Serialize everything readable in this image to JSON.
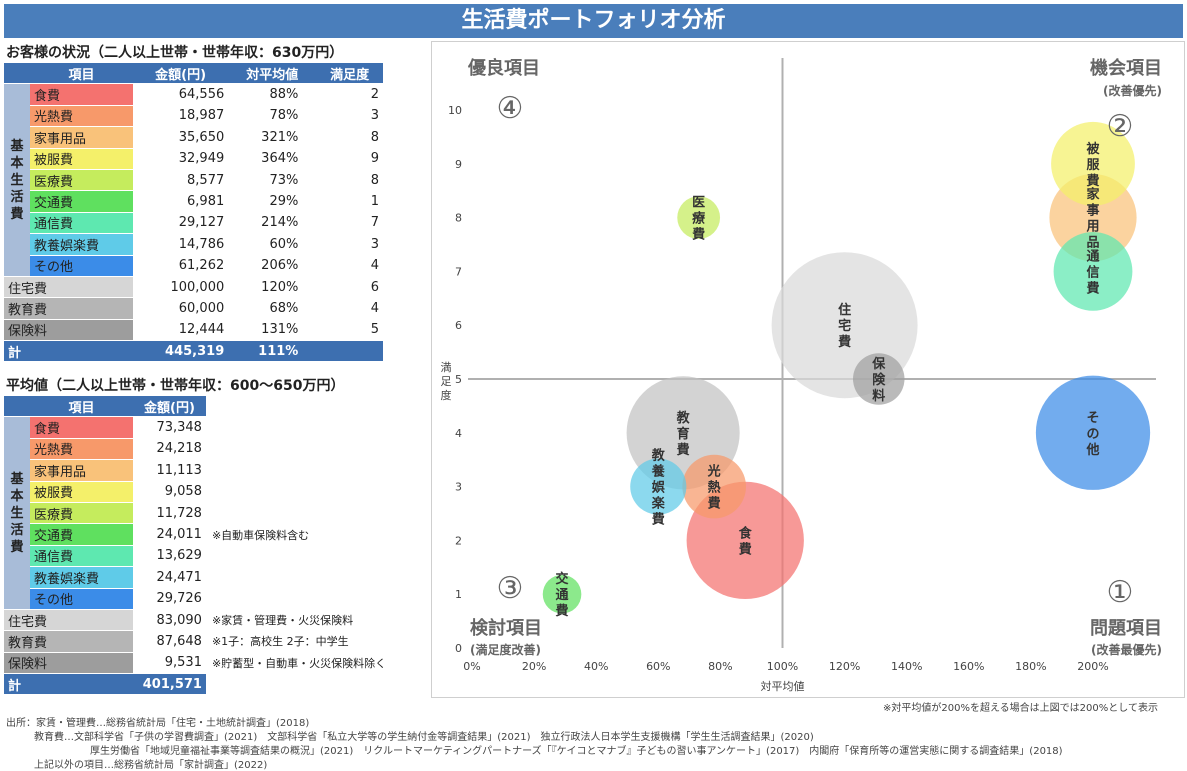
{
  "title": "生活費ポートフォリオ分析",
  "table1": {
    "heading": "お客様の状況（二人以上世帯・世帯年収：630万円）",
    "headers": [
      "",
      "項目",
      "金額(円)",
      "対平均値",
      "満足度"
    ],
    "side_label": "基本生活費",
    "basic_rows": [
      {
        "item": "食費",
        "amount": "64,556",
        "ratio": "88%",
        "sat": "2",
        "color": "#f4726f"
      },
      {
        "item": "光熱費",
        "amount": "18,987",
        "ratio": "78%",
        "sat": "3",
        "color": "#f7996a"
      },
      {
        "item": "家事用品",
        "amount": "35,650",
        "ratio": "321%",
        "sat": "8",
        "color": "#f9c27a"
      },
      {
        "item": "被服費",
        "amount": "32,949",
        "ratio": "364%",
        "sat": "9",
        "color": "#f4f06a"
      },
      {
        "item": "医療費",
        "amount": "8,577",
        "ratio": "73%",
        "sat": "8",
        "color": "#c5ec5d"
      },
      {
        "item": "交通費",
        "amount": "6,981",
        "ratio": "29%",
        "sat": "1",
        "color": "#5fe05f"
      },
      {
        "item": "通信費",
        "amount": "29,127",
        "ratio": "214%",
        "sat": "7",
        "color": "#5ee8b0"
      },
      {
        "item": "教養娯楽費",
        "amount": "14,786",
        "ratio": "60%",
        "sat": "3",
        "color": "#5fcbe8"
      },
      {
        "item": "その他",
        "amount": "61,262",
        "ratio": "206%",
        "sat": "4",
        "color": "#3b8ce8"
      }
    ],
    "other_rows": [
      {
        "item": "住宅費",
        "amount": "100,000",
        "ratio": "120%",
        "sat": "6",
        "cls": "gray1"
      },
      {
        "item": "教育費",
        "amount": "60,000",
        "ratio": "68%",
        "sat": "4",
        "cls": "gray2"
      },
      {
        "item": "保険料",
        "amount": "12,444",
        "ratio": "131%",
        "sat": "5",
        "cls": "gray3"
      }
    ],
    "total": {
      "label": "計",
      "amount": "445,319",
      "ratio": "111%"
    }
  },
  "table2": {
    "heading": "平均値（二人以上世帯・世帯年収：600～650万円）",
    "headers": [
      "",
      "項目",
      "金額(円)"
    ],
    "side_label": "基本生活費",
    "basic_rows": [
      {
        "item": "食費",
        "amount": "73,348",
        "note": "",
        "color": "#f4726f"
      },
      {
        "item": "光熱費",
        "amount": "24,218",
        "note": "",
        "color": "#f7996a"
      },
      {
        "item": "家事用品",
        "amount": "11,113",
        "note": "",
        "color": "#f9c27a"
      },
      {
        "item": "被服費",
        "amount": "9,058",
        "note": "",
        "color": "#f4f06a"
      },
      {
        "item": "医療費",
        "amount": "11,728",
        "note": "",
        "color": "#c5ec5d"
      },
      {
        "item": "交通費",
        "amount": "24,011",
        "note": "※自動車保険料含む",
        "color": "#5fe05f"
      },
      {
        "item": "通信費",
        "amount": "13,629",
        "note": "",
        "color": "#5ee8b0"
      },
      {
        "item": "教養娯楽費",
        "amount": "24,471",
        "note": "",
        "color": "#5fcbe8"
      },
      {
        "item": "その他",
        "amount": "29,726",
        "note": "",
        "color": "#3b8ce8"
      }
    ],
    "other_rows": [
      {
        "item": "住宅費",
        "amount": "83,090",
        "note": "※家賃・管理費・火災保険料",
        "cls": "gray1"
      },
      {
        "item": "教育費",
        "amount": "87,648",
        "note": "※1子：高校生 2子：中学生",
        "cls": "gray2"
      },
      {
        "item": "保険料",
        "amount": "9,531",
        "note": "※貯蓄型・自動車・火災保険料除く",
        "cls": "gray3"
      }
    ],
    "total": {
      "label": "計",
      "amount": "401,571"
    }
  },
  "chart_data": {
    "type": "scatter",
    "xlabel": "対平均値",
    "ylabel": "満足度",
    "xlim": [
      0,
      200
    ],
    "ylim": [
      0,
      10
    ],
    "x_ticks": [
      "0%",
      "20%",
      "40%",
      "60%",
      "80%",
      "100%",
      "120%",
      "140%",
      "160%",
      "180%",
      "200%"
    ],
    "y_ticks": [
      "0",
      "1",
      "2",
      "3",
      "4",
      "5",
      "6",
      "7",
      "8",
      "9",
      "10"
    ],
    "divider_x": 100,
    "divider_y": 5,
    "quadrants": [
      {
        "name": "優良項目",
        "number": "④",
        "sub": ""
      },
      {
        "name": "機会項目",
        "number": "②",
        "sub": "(改善優先)"
      },
      {
        "name": "検討項目",
        "number": "③",
        "sub": "(満足度改善)"
      },
      {
        "name": "問題項目",
        "number": "①",
        "sub": "(改善最優先)"
      }
    ],
    "bubbles": [
      {
        "label": "住宅費",
        "x": 120,
        "y": 6,
        "amount": 100000,
        "color": "#d9d9d9"
      },
      {
        "label": "教育費",
        "x": 68,
        "y": 4,
        "amount": 60000,
        "color": "#c2c2c2"
      },
      {
        "label": "保険料",
        "x": 131,
        "y": 5,
        "amount": 12444,
        "color": "#a0a0a0"
      },
      {
        "label": "食費",
        "x": 88,
        "y": 2,
        "amount": 64556,
        "color": "#f4726f"
      },
      {
        "label": "光熱費",
        "x": 78,
        "y": 3,
        "amount": 18987,
        "color": "#f7996a"
      },
      {
        "label": "教養娯楽費",
        "x": 60,
        "y": 3,
        "amount": 14786,
        "color": "#5fcbe8"
      },
      {
        "label": "交通費",
        "x": 29,
        "y": 1,
        "amount": 6981,
        "color": "#5fe05f"
      },
      {
        "label": "医療費",
        "x": 73,
        "y": 8,
        "amount": 8577,
        "color": "#c5ec5d"
      },
      {
        "label": "家事用品",
        "x": 200,
        "y": 8,
        "amount": 35650,
        "color": "#f9c27a"
      },
      {
        "label": "被服費",
        "x": 200,
        "y": 9,
        "amount": 32949,
        "color": "#f4f06a"
      },
      {
        "label": "通信費",
        "x": 200,
        "y": 7,
        "amount": 29127,
        "color": "#5ee8b0"
      },
      {
        "label": "その他",
        "x": 200,
        "y": 4,
        "amount": 61262,
        "color": "#3b8ce8"
      }
    ]
  },
  "chart_footnote": "※対平均値が200%を超える場合は上図では200%として表示",
  "sources": [
    "出所：家賃・管理費…総務省統計局「住宅・土地統計調査」(2018)",
    "教育費…文部科学省「子供の学習費調査」(2021)　文部科学省「私立大学等の学生納付金等調査結果」(2021)　独立行政法人日本学生支援機構「学生生活調査結果」(2020)",
    "厚生労働省「地域児童福祉事業等調査結果の概況」(2021)　リクルートマーケティングパートナーズ「『ケイコとマナブ』子どもの習い事アンケート」(2017)　内閣府「保育所等の運営実態に関する調査結果」(2018)",
    "上記以外の項目…総務省統計局「家計調査」(2022)"
  ]
}
